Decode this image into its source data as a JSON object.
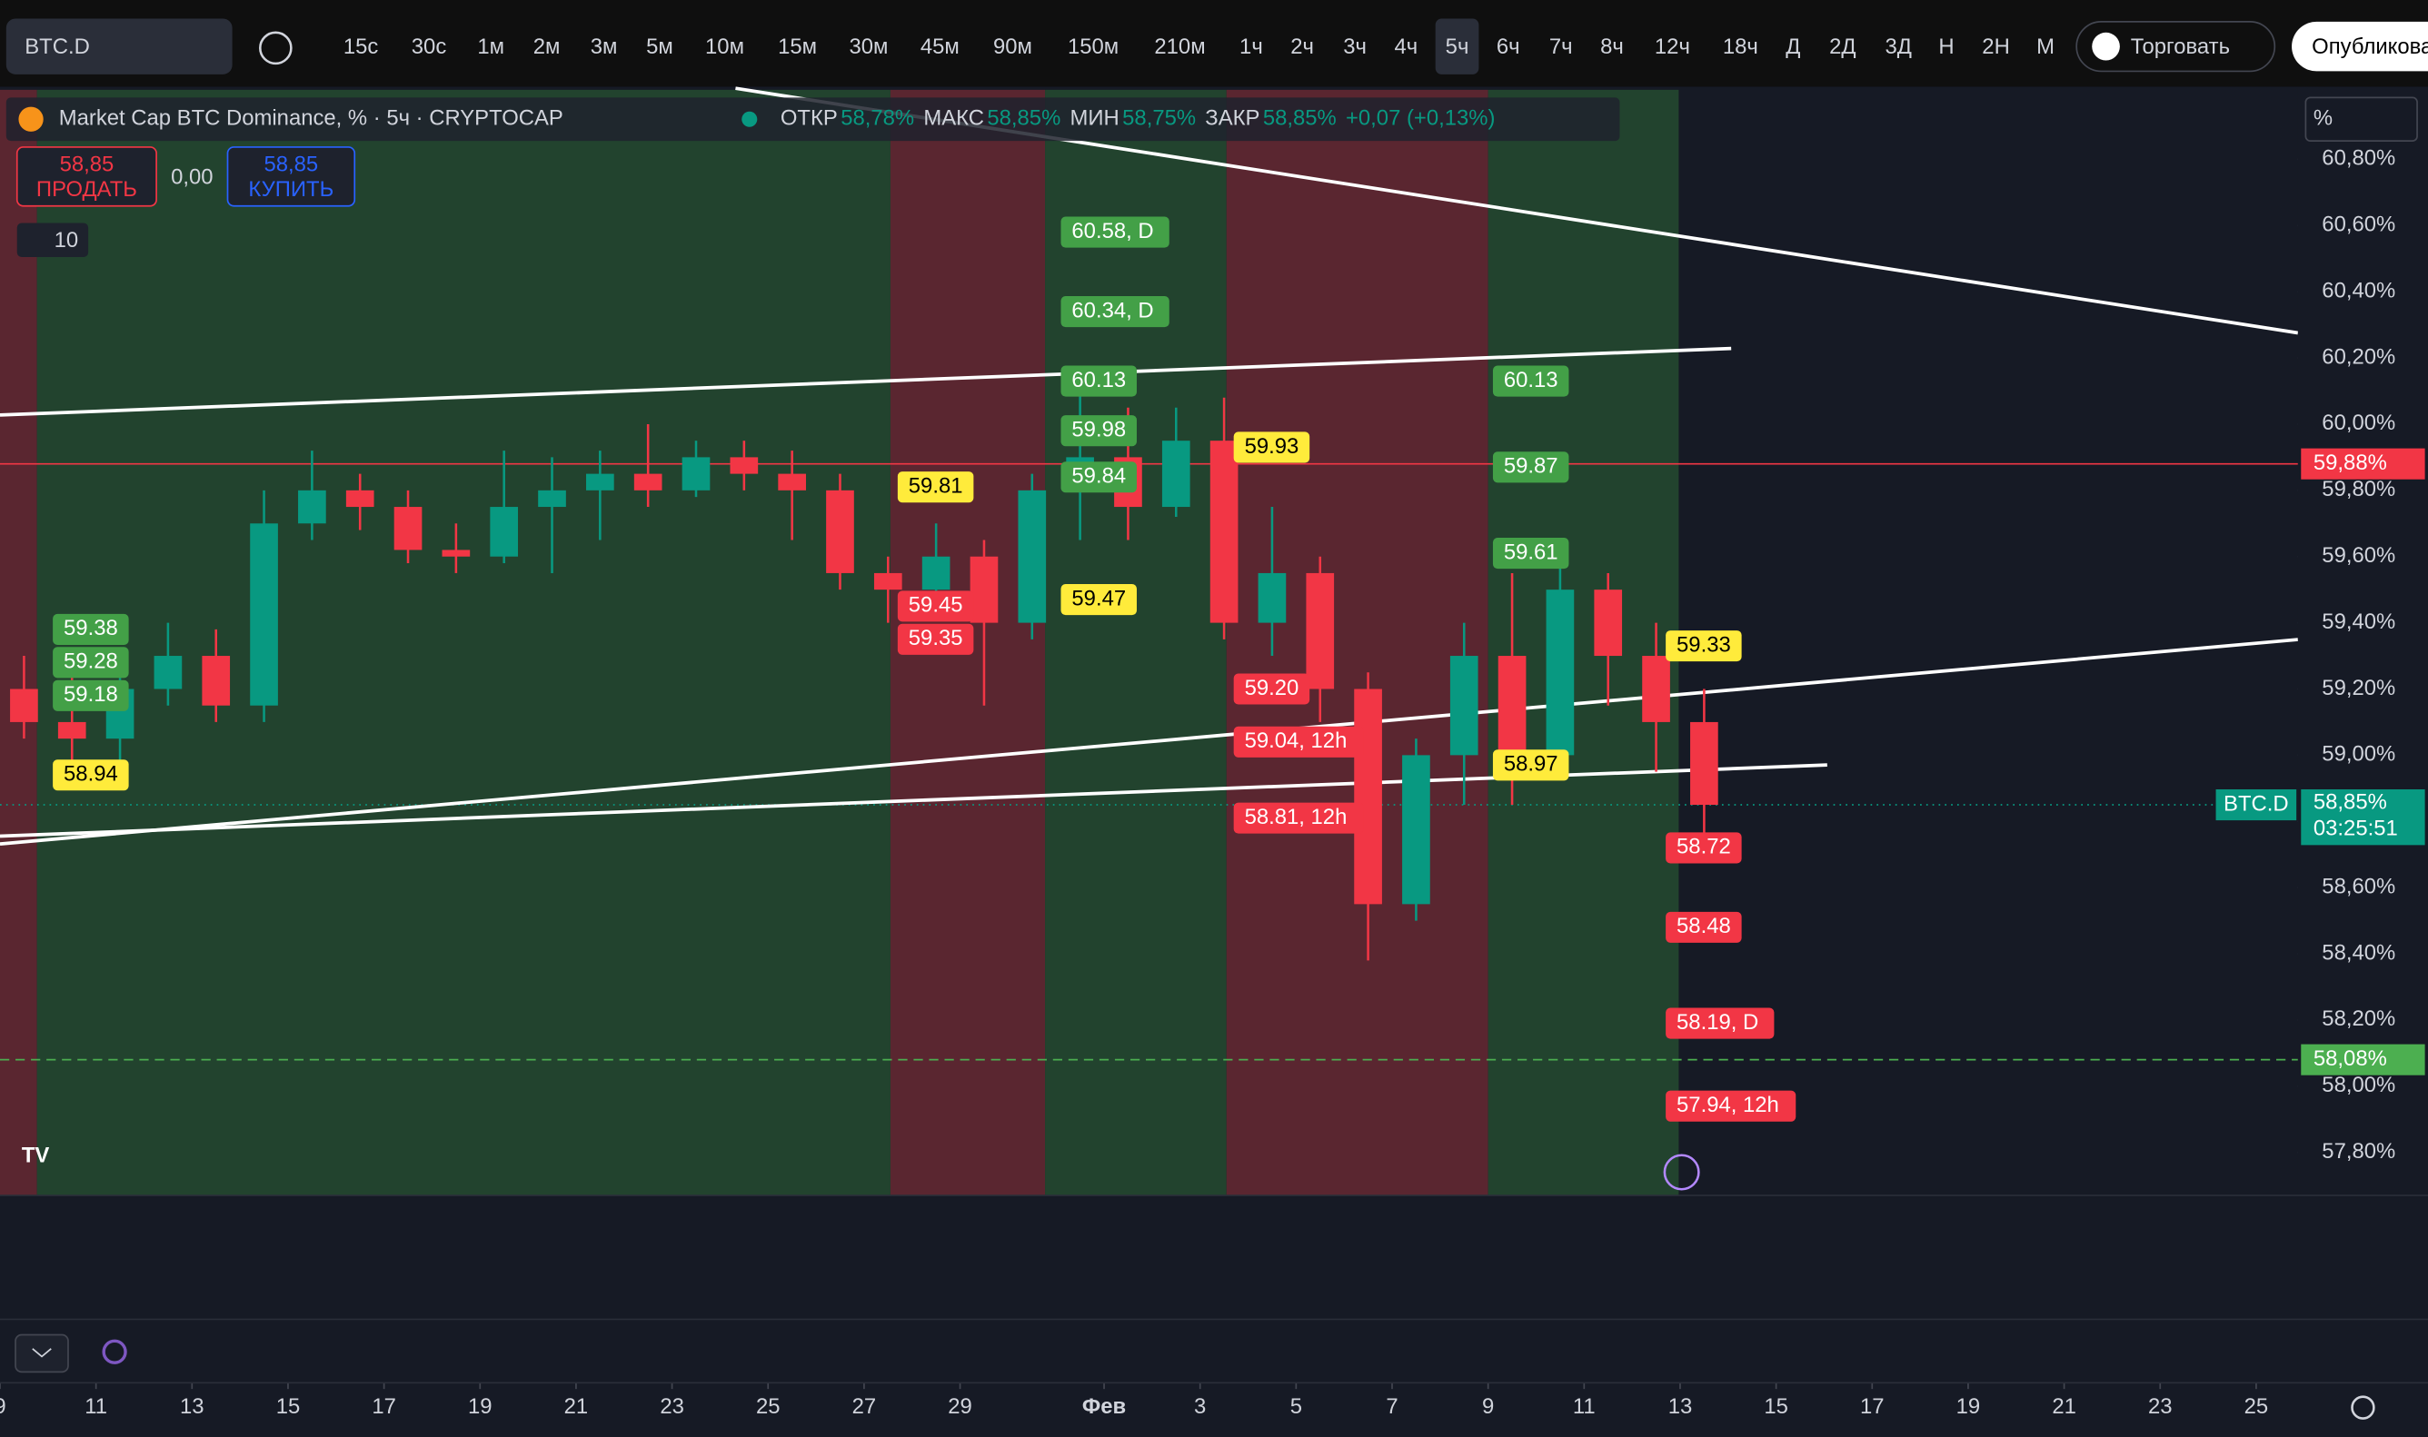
{
  "toolbar": {
    "symbol": "BTC.D",
    "intervals": [
      "15с",
      "30с",
      "1м",
      "2м",
      "3м",
      "5м",
      "10м",
      "15м",
      "30м",
      "45м",
      "90м",
      "150м",
      "210м",
      "1ч",
      "2ч",
      "3ч",
      "4ч",
      "5ч",
      "6ч",
      "7ч",
      "8ч",
      "12ч",
      "18ч",
      "Д",
      "2Д",
      "3Д",
      "Н",
      "2Н",
      "М"
    ],
    "selected_interval": 17,
    "trade": "Торговать",
    "publish": "Опубликовать"
  },
  "legend": {
    "title": "Market Cap BTC Dominance, % · 5ч · CRYPTOCAP",
    "fields": [
      {
        "name": "ОТКР",
        "value": "58,78%"
      },
      {
        "name": "МАКС",
        "value": "58,85%"
      },
      {
        "name": "МИН",
        "value": "58,75%"
      },
      {
        "name": "ЗАКР",
        "value": "58,85%"
      }
    ],
    "change": "+0,07 (+0,13%)",
    "sell": {
      "price": "58,85",
      "label": "ПРОДАТЬ"
    },
    "spread": "0,00",
    "buy": {
      "price": "58,85",
      "label": "КУПИТЬ"
    },
    "indicators": "10"
  },
  "chart_data": {
    "type": "candlestick",
    "up_color": "#089981",
    "down_color": "#f23645",
    "x": [
      0,
      1,
      2,
      3,
      4,
      5,
      6,
      7,
      8,
      9,
      10,
      11,
      12,
      13,
      14,
      15,
      16,
      17,
      18,
      19,
      20,
      21,
      22,
      23,
      24,
      25,
      26,
      27,
      28,
      29,
      30,
      31,
      32,
      33,
      34,
      35
    ],
    "open": [
      59.2,
      59.1,
      59.05,
      59.2,
      59.3,
      59.15,
      59.7,
      59.8,
      59.75,
      59.62,
      59.6,
      59.75,
      59.8,
      59.85,
      59.8,
      59.9,
      59.85,
      59.8,
      59.55,
      59.5,
      59.6,
      59.4,
      59.8,
      59.9,
      59.75,
      59.95,
      59.4,
      59.55,
      59.2,
      58.55,
      59.0,
      59.3,
      59.0,
      59.5,
      59.3,
      59.1
    ],
    "high": [
      59.3,
      59.25,
      59.25,
      59.4,
      59.38,
      59.8,
      59.92,
      59.85,
      59.8,
      59.7,
      59.92,
      59.9,
      59.92,
      60.0,
      59.95,
      59.95,
      59.92,
      59.85,
      59.6,
      59.7,
      59.65,
      59.85,
      60.1,
      60.05,
      60.05,
      60.08,
      59.75,
      59.6,
      59.25,
      59.05,
      59.4,
      59.55,
      59.6,
      59.55,
      59.4,
      59.2
    ],
    "low": [
      59.05,
      58.95,
      58.95,
      59.15,
      59.1,
      59.1,
      59.65,
      59.68,
      59.58,
      59.55,
      59.58,
      59.55,
      59.65,
      59.75,
      59.78,
      59.8,
      59.65,
      59.5,
      59.4,
      59.45,
      59.15,
      59.35,
      59.65,
      59.65,
      59.72,
      59.35,
      59.3,
      59.1,
      58.38,
      58.5,
      58.85,
      58.85,
      58.95,
      59.15,
      58.95,
      58.72
    ],
    "close": [
      59.1,
      59.05,
      59.2,
      59.3,
      59.15,
      59.7,
      59.8,
      59.75,
      59.62,
      59.6,
      59.75,
      59.8,
      59.85,
      59.8,
      59.9,
      59.85,
      59.8,
      59.55,
      59.5,
      59.6,
      59.4,
      59.8,
      59.9,
      59.75,
      59.95,
      59.4,
      59.55,
      59.2,
      58.55,
      59.0,
      59.3,
      59.0,
      59.5,
      59.3,
      59.1,
      58.85
    ],
    "xlim": [
      0,
      47.87
    ],
    "xticks": [
      {
        "value": 0,
        "label": "9"
      },
      {
        "value": 2,
        "label": "11"
      },
      {
        "value": 4,
        "label": "13"
      },
      {
        "value": 6,
        "label": "15"
      },
      {
        "value": 8,
        "label": "17"
      },
      {
        "value": 10,
        "label": "19"
      },
      {
        "value": 12,
        "label": "21"
      },
      {
        "value": 14,
        "label": "23"
      },
      {
        "value": 16,
        "label": "25"
      },
      {
        "value": 18,
        "label": "27"
      },
      {
        "value": 20,
        "label": "29"
      },
      {
        "value": 23,
        "label": "Фев"
      },
      {
        "value": 25,
        "label": "3"
      },
      {
        "value": 27,
        "label": "5"
      },
      {
        "value": 29,
        "label": "7"
      },
      {
        "value": 31,
        "label": "9"
      },
      {
        "value": 33,
        "label": "11"
      },
      {
        "value": 35,
        "label": "13"
      },
      {
        "value": 37,
        "label": "15"
      },
      {
        "value": 39,
        "label": "17"
      },
      {
        "value": 41,
        "label": "19"
      },
      {
        "value": 43,
        "label": "21"
      },
      {
        "value": 45,
        "label": "23"
      },
      {
        "value": 47,
        "label": "25"
      }
    ],
    "ylim": [
      57.67,
      61.01
    ],
    "yticks": [
      {
        "value": 57.8,
        "label": "57,80%"
      },
      {
        "value": 58.0,
        "label": "58,00%"
      },
      {
        "value": 58.2,
        "label": "58,20%"
      },
      {
        "value": 58.4,
        "label": "58,40%"
      },
      {
        "value": 58.6,
        "label": "58,60%"
      },
      {
        "value": 58.8,
        "label": "58,80%"
      },
      {
        "value": 59.0,
        "label": "59,00%"
      },
      {
        "value": 59.2,
        "label": "59,20%"
      },
      {
        "value": 59.4,
        "label": "59,40%"
      },
      {
        "value": 59.6,
        "label": "59,60%"
      },
      {
        "value": 59.8,
        "label": "59,80%"
      },
      {
        "value": 60.0,
        "label": "60,00%"
      },
      {
        "value": 60.2,
        "label": "60,20%"
      },
      {
        "value": 60.4,
        "label": "60,40%"
      },
      {
        "value": 60.6,
        "label": "60,60%"
      },
      {
        "value": 60.8,
        "label": "60,80%"
      }
    ],
    "axis_unit": "%",
    "price_lines": [
      {
        "value": 59.88,
        "label": "59,88%",
        "color": "#f23645"
      },
      {
        "value": 58.08,
        "label": "58,08%",
        "color": "#4caf50"
      }
    ],
    "last_price": {
      "value": 58.85,
      "label": "58,85%",
      "symbol": "BTC.D",
      "countdown": "03:25:51",
      "color": "#089981"
    },
    "zones": [
      {
        "start": 0,
        "end": 0.77,
        "color": "#5a2630"
      },
      {
        "start": 0.77,
        "end": 18.55,
        "color": "#22432e"
      },
      {
        "start": 18.55,
        "end": 21.77,
        "color": "#5a2630"
      },
      {
        "start": 21.77,
        "end": 25.55,
        "color": "#22432e"
      },
      {
        "start": 25.55,
        "end": 31,
        "color": "#5a2630"
      },
      {
        "start": 31,
        "end": 34.97,
        "color": "#22432e"
      }
    ],
    "annotations": [
      {
        "label": "59.38",
        "value": 59.38,
        "day": 1.1,
        "color": "#43a047"
      },
      {
        "label": "59.28",
        "value": 59.28,
        "day": 1.1,
        "color": "#43a047"
      },
      {
        "label": "59.18",
        "value": 59.18,
        "day": 1.1,
        "color": "#43a047"
      },
      {
        "label": "58.94",
        "value": 58.94,
        "day": 1.1,
        "color": "#ffeb3b"
      },
      {
        "label": "59.81",
        "value": 59.81,
        "day": 18.7,
        "color": "#ffeb3b"
      },
      {
        "label": "59.45",
        "value": 59.45,
        "day": 18.7,
        "color": "#f23645"
      },
      {
        "label": "59.35",
        "value": 59.35,
        "day": 18.7,
        "color": "#f23645"
      },
      {
        "label": "60.58, D",
        "value": 60.58,
        "day": 22.1,
        "color": "#43a047"
      },
      {
        "label": "60.34, D",
        "value": 60.34,
        "day": 22.1,
        "color": "#43a047"
      },
      {
        "label": "60.13",
        "value": 60.13,
        "day": 22.1,
        "color": "#43a047"
      },
      {
        "label": "59.98",
        "value": 59.98,
        "day": 22.1,
        "color": "#43a047"
      },
      {
        "label": "59.84",
        "value": 59.84,
        "day": 22.1,
        "color": "#43a047"
      },
      {
        "label": "59.47",
        "value": 59.47,
        "day": 22.1,
        "color": "#ffeb3b"
      },
      {
        "label": "59.93",
        "value": 59.93,
        "day": 25.7,
        "color": "#ffeb3b"
      },
      {
        "label": "59.20",
        "value": 59.2,
        "day": 25.7,
        "color": "#f23645"
      },
      {
        "label": "59.04, 12h",
        "value": 59.04,
        "day": 25.7,
        "color": "#f23645"
      },
      {
        "label": "58.81, 12h",
        "value": 58.81,
        "day": 25.7,
        "color": "#f23645"
      },
      {
        "label": "60.13",
        "value": 60.13,
        "day": 31.1,
        "color": "#43a047"
      },
      {
        "label": "59.87",
        "value": 59.87,
        "day": 31.1,
        "color": "#43a047"
      },
      {
        "label": "59.61",
        "value": 59.61,
        "day": 31.1,
        "color": "#43a047"
      },
      {
        "label": "58.97",
        "value": 58.97,
        "day": 31.1,
        "color": "#ffeb3b"
      },
      {
        "label": "59.33",
        "value": 59.33,
        "day": 34.7,
        "color": "#ffeb3b"
      },
      {
        "label": "58.72",
        "value": 58.72,
        "day": 34.7,
        "color": "#f23645"
      },
      {
        "label": "58.48",
        "value": 58.48,
        "day": 34.7,
        "color": "#f23645"
      },
      {
        "label": "58.19, D",
        "value": 58.19,
        "day": 34.7,
        "color": "#f23645"
      },
      {
        "label": "57.94, 12h",
        "value": 57.94,
        "day": 34.7,
        "color": "#f23645"
      }
    ]
  }
}
